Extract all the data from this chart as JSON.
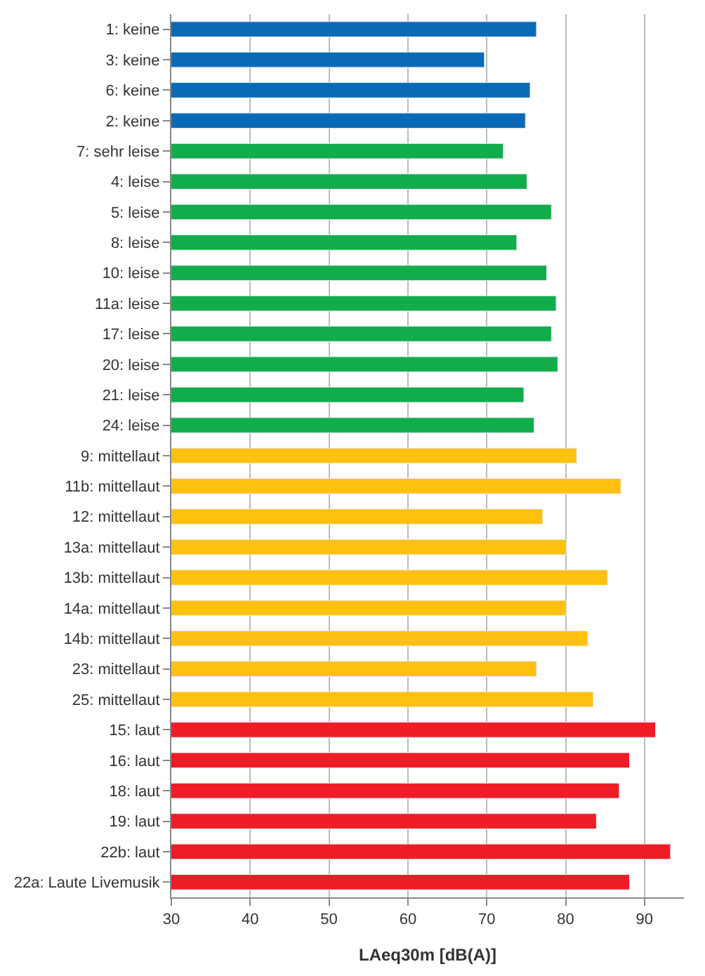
{
  "chart_data": {
    "type": "bar",
    "orientation": "horizontal",
    "xlabel": "LAeq30m [dB(A)]",
    "categories": [
      "1: keine",
      "3: keine",
      "6: keine",
      "2: keine",
      "7: sehr leise",
      "4: leise",
      "5: leise",
      "8: leise",
      "10: leise",
      "11a: leise",
      "17: leise",
      "20: leise",
      "21: leise",
      "24: leise",
      "9: mittellaut",
      "11b: mittellaut",
      "12: mittellaut",
      "13a: mittellaut",
      "13b: mittellaut",
      "14a: mittellaut",
      "14b: mittellaut",
      "23: mittellaut",
      "25: mittellaut",
      "15: laut",
      "16: laut",
      "18: laut",
      "19: laut",
      "22b: laut",
      "22a: Laute Livemusik"
    ],
    "values": [
      76.3,
      69.7,
      75.5,
      74.9,
      72.1,
      75.1,
      78.2,
      73.8,
      77.6,
      78.8,
      78.2,
      79.0,
      74.7,
      76.0,
      81.4,
      87.0,
      77.1,
      80.1,
      85.3,
      80.1,
      82.8,
      76.3,
      83.5,
      91.4,
      88.1,
      86.8,
      83.9,
      93.3,
      88.1
    ],
    "colors": [
      "#0a6ab8",
      "#0a6ab8",
      "#0a6ab8",
      "#0a6ab8",
      "#12ad4b",
      "#12ad4b",
      "#12ad4b",
      "#12ad4b",
      "#12ad4b",
      "#12ad4b",
      "#12ad4b",
      "#12ad4b",
      "#12ad4b",
      "#12ad4b",
      "#ffc010",
      "#ffc010",
      "#ffc010",
      "#ffc010",
      "#ffc010",
      "#ffc010",
      "#ffc010",
      "#ffc010",
      "#ffc010",
      "#ee1c25",
      "#ee1c25",
      "#ee1c25",
      "#ee1c25",
      "#ee1c25",
      "#ee1c25"
    ],
    "xlim": [
      30,
      95
    ],
    "xticks": [
      30,
      40,
      50,
      60,
      70,
      80,
      90
    ],
    "grid": "x",
    "legend": false
  }
}
